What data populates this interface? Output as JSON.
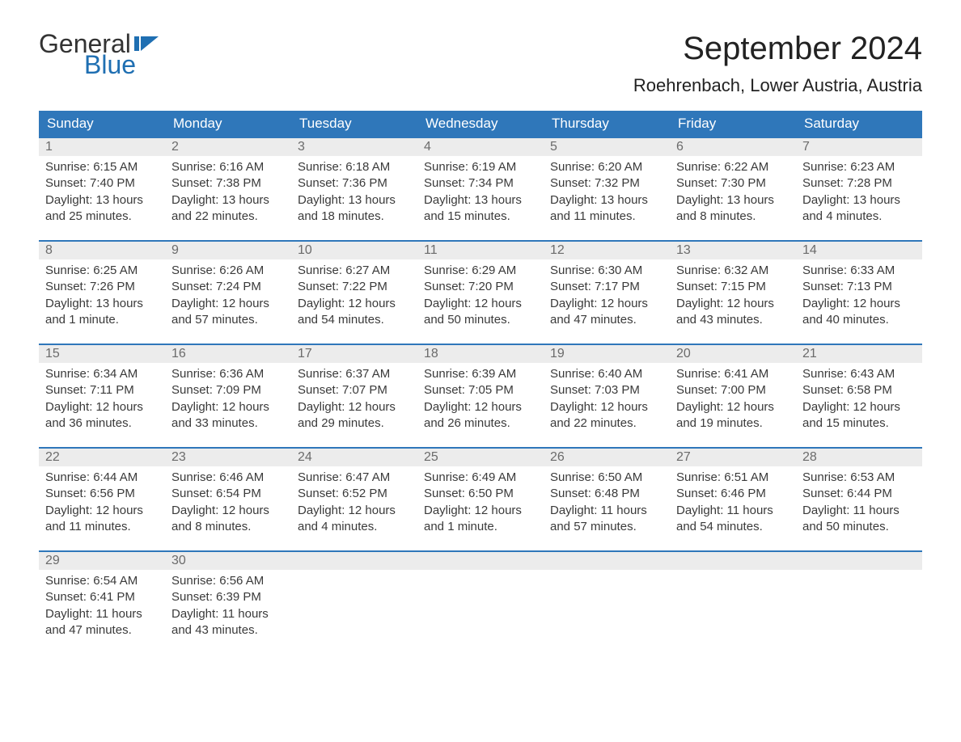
{
  "colors": {
    "header_bg": "#2f77ba",
    "header_text": "#ffffff",
    "daynum_bg": "#ececec",
    "daynum_text": "#6b6b6b",
    "row_border": "#2f77ba",
    "body_text": "#3a3a3a",
    "logo_dark": "#333333",
    "logo_blue": "#1f6fb2",
    "page_bg": "#ffffff"
  },
  "logo": {
    "word1": "General",
    "word2": "Blue"
  },
  "title": "September 2024",
  "location": "Roehrenbach, Lower Austria, Austria",
  "weekdays": [
    "Sunday",
    "Monday",
    "Tuesday",
    "Wednesday",
    "Thursday",
    "Friday",
    "Saturday"
  ],
  "weeks": [
    [
      {
        "n": "1",
        "sr": "Sunrise: 6:15 AM",
        "ss": "Sunset: 7:40 PM",
        "d1": "Daylight: 13 hours",
        "d2": "and 25 minutes."
      },
      {
        "n": "2",
        "sr": "Sunrise: 6:16 AM",
        "ss": "Sunset: 7:38 PM",
        "d1": "Daylight: 13 hours",
        "d2": "and 22 minutes."
      },
      {
        "n": "3",
        "sr": "Sunrise: 6:18 AM",
        "ss": "Sunset: 7:36 PM",
        "d1": "Daylight: 13 hours",
        "d2": "and 18 minutes."
      },
      {
        "n": "4",
        "sr": "Sunrise: 6:19 AM",
        "ss": "Sunset: 7:34 PM",
        "d1": "Daylight: 13 hours",
        "d2": "and 15 minutes."
      },
      {
        "n": "5",
        "sr": "Sunrise: 6:20 AM",
        "ss": "Sunset: 7:32 PM",
        "d1": "Daylight: 13 hours",
        "d2": "and 11 minutes."
      },
      {
        "n": "6",
        "sr": "Sunrise: 6:22 AM",
        "ss": "Sunset: 7:30 PM",
        "d1": "Daylight: 13 hours",
        "d2": "and 8 minutes."
      },
      {
        "n": "7",
        "sr": "Sunrise: 6:23 AM",
        "ss": "Sunset: 7:28 PM",
        "d1": "Daylight: 13 hours",
        "d2": "and 4 minutes."
      }
    ],
    [
      {
        "n": "8",
        "sr": "Sunrise: 6:25 AM",
        "ss": "Sunset: 7:26 PM",
        "d1": "Daylight: 13 hours",
        "d2": "and 1 minute."
      },
      {
        "n": "9",
        "sr": "Sunrise: 6:26 AM",
        "ss": "Sunset: 7:24 PM",
        "d1": "Daylight: 12 hours",
        "d2": "and 57 minutes."
      },
      {
        "n": "10",
        "sr": "Sunrise: 6:27 AM",
        "ss": "Sunset: 7:22 PM",
        "d1": "Daylight: 12 hours",
        "d2": "and 54 minutes."
      },
      {
        "n": "11",
        "sr": "Sunrise: 6:29 AM",
        "ss": "Sunset: 7:20 PM",
        "d1": "Daylight: 12 hours",
        "d2": "and 50 minutes."
      },
      {
        "n": "12",
        "sr": "Sunrise: 6:30 AM",
        "ss": "Sunset: 7:17 PM",
        "d1": "Daylight: 12 hours",
        "d2": "and 47 minutes."
      },
      {
        "n": "13",
        "sr": "Sunrise: 6:32 AM",
        "ss": "Sunset: 7:15 PM",
        "d1": "Daylight: 12 hours",
        "d2": "and 43 minutes."
      },
      {
        "n": "14",
        "sr": "Sunrise: 6:33 AM",
        "ss": "Sunset: 7:13 PM",
        "d1": "Daylight: 12 hours",
        "d2": "and 40 minutes."
      }
    ],
    [
      {
        "n": "15",
        "sr": "Sunrise: 6:34 AM",
        "ss": "Sunset: 7:11 PM",
        "d1": "Daylight: 12 hours",
        "d2": "and 36 minutes."
      },
      {
        "n": "16",
        "sr": "Sunrise: 6:36 AM",
        "ss": "Sunset: 7:09 PM",
        "d1": "Daylight: 12 hours",
        "d2": "and 33 minutes."
      },
      {
        "n": "17",
        "sr": "Sunrise: 6:37 AM",
        "ss": "Sunset: 7:07 PM",
        "d1": "Daylight: 12 hours",
        "d2": "and 29 minutes."
      },
      {
        "n": "18",
        "sr": "Sunrise: 6:39 AM",
        "ss": "Sunset: 7:05 PM",
        "d1": "Daylight: 12 hours",
        "d2": "and 26 minutes."
      },
      {
        "n": "19",
        "sr": "Sunrise: 6:40 AM",
        "ss": "Sunset: 7:03 PM",
        "d1": "Daylight: 12 hours",
        "d2": "and 22 minutes."
      },
      {
        "n": "20",
        "sr": "Sunrise: 6:41 AM",
        "ss": "Sunset: 7:00 PM",
        "d1": "Daylight: 12 hours",
        "d2": "and 19 minutes."
      },
      {
        "n": "21",
        "sr": "Sunrise: 6:43 AM",
        "ss": "Sunset: 6:58 PM",
        "d1": "Daylight: 12 hours",
        "d2": "and 15 minutes."
      }
    ],
    [
      {
        "n": "22",
        "sr": "Sunrise: 6:44 AM",
        "ss": "Sunset: 6:56 PM",
        "d1": "Daylight: 12 hours",
        "d2": "and 11 minutes."
      },
      {
        "n": "23",
        "sr": "Sunrise: 6:46 AM",
        "ss": "Sunset: 6:54 PM",
        "d1": "Daylight: 12 hours",
        "d2": "and 8 minutes."
      },
      {
        "n": "24",
        "sr": "Sunrise: 6:47 AM",
        "ss": "Sunset: 6:52 PM",
        "d1": "Daylight: 12 hours",
        "d2": "and 4 minutes."
      },
      {
        "n": "25",
        "sr": "Sunrise: 6:49 AM",
        "ss": "Sunset: 6:50 PM",
        "d1": "Daylight: 12 hours",
        "d2": "and 1 minute."
      },
      {
        "n": "26",
        "sr": "Sunrise: 6:50 AM",
        "ss": "Sunset: 6:48 PM",
        "d1": "Daylight: 11 hours",
        "d2": "and 57 minutes."
      },
      {
        "n": "27",
        "sr": "Sunrise: 6:51 AM",
        "ss": "Sunset: 6:46 PM",
        "d1": "Daylight: 11 hours",
        "d2": "and 54 minutes."
      },
      {
        "n": "28",
        "sr": "Sunrise: 6:53 AM",
        "ss": "Sunset: 6:44 PM",
        "d1": "Daylight: 11 hours",
        "d2": "and 50 minutes."
      }
    ],
    [
      {
        "n": "29",
        "sr": "Sunrise: 6:54 AM",
        "ss": "Sunset: 6:41 PM",
        "d1": "Daylight: 11 hours",
        "d2": "and 47 minutes."
      },
      {
        "n": "30",
        "sr": "Sunrise: 6:56 AM",
        "ss": "Sunset: 6:39 PM",
        "d1": "Daylight: 11 hours",
        "d2": "and 43 minutes."
      },
      {
        "n": "",
        "sr": "",
        "ss": "",
        "d1": "",
        "d2": ""
      },
      {
        "n": "",
        "sr": "",
        "ss": "",
        "d1": "",
        "d2": ""
      },
      {
        "n": "",
        "sr": "",
        "ss": "",
        "d1": "",
        "d2": ""
      },
      {
        "n": "",
        "sr": "",
        "ss": "",
        "d1": "",
        "d2": ""
      },
      {
        "n": "",
        "sr": "",
        "ss": "",
        "d1": "",
        "d2": ""
      }
    ]
  ]
}
